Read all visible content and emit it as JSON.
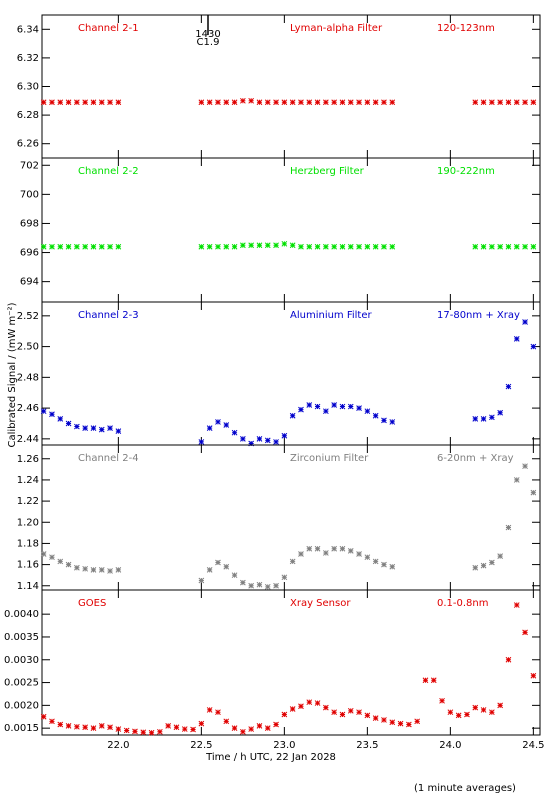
{
  "chart_data": [
    {
      "type": "scatter",
      "color": "#e00000",
      "annotations": [
        "Channel 2-1",
        "Lyman-alpha Filter",
        "120-123nm"
      ],
      "marker_event": {
        "x": 22.54,
        "texts": [
          "1430",
          "C1.9"
        ]
      },
      "x": [
        21.55,
        21.6,
        21.65,
        21.7,
        21.75,
        21.8,
        21.85,
        21.9,
        21.95,
        22.0,
        22.05,
        22.1,
        22.15,
        22.2,
        22.25,
        22.3,
        22.35,
        22.4,
        22.45,
        22.5,
        22.55,
        22.6,
        22.65,
        22.7,
        22.75,
        22.8,
        22.85,
        22.9,
        22.95,
        23.0,
        23.05,
        23.1,
        23.15,
        23.2,
        23.25,
        23.3,
        23.35,
        23.4,
        23.45,
        23.5,
        23.55,
        23.6,
        23.65,
        23.7,
        23.75,
        23.8,
        23.85,
        23.9,
        23.95,
        24.0,
        24.05,
        24.1,
        24.15,
        24.2,
        24.25,
        24.3,
        24.35,
        24.4,
        24.45,
        24.5
      ],
      "values": [
        6.289,
        6.289,
        6.289,
        6.289,
        6.289,
        6.289,
        6.289,
        6.289,
        6.289,
        6.289,
        null,
        null,
        null,
        null,
        null,
        null,
        null,
        null,
        null,
        6.289,
        6.289,
        6.289,
        6.289,
        6.289,
        6.29,
        6.29,
        6.289,
        6.289,
        6.289,
        6.289,
        6.289,
        6.289,
        6.289,
        6.289,
        6.289,
        6.289,
        6.289,
        6.289,
        6.289,
        6.289,
        6.289,
        6.289,
        6.289,
        null,
        null,
        null,
        null,
        null,
        null,
        null,
        null,
        null,
        6.289,
        6.289,
        6.289,
        6.289,
        6.289,
        6.289,
        6.289,
        6.289
      ],
      "xlim": [
        21.54,
        24.54
      ],
      "ylim": [
        6.25,
        6.35
      ],
      "yticks": [
        6.26,
        6.28,
        {
          "value": 6.3,
          "label": "6.30"
        },
        6.32,
        6.34
      ]
    },
    {
      "type": "scatter",
      "color": "#00e000",
      "annotations": [
        "Channel 2-2",
        "Herzberg Filter",
        "190-222nm"
      ],
      "x": [
        21.55,
        21.6,
        21.65,
        21.7,
        21.75,
        21.8,
        21.85,
        21.9,
        21.95,
        22.0,
        22.05,
        22.1,
        22.15,
        22.2,
        22.25,
        22.3,
        22.35,
        22.4,
        22.45,
        22.5,
        22.55,
        22.6,
        22.65,
        22.7,
        22.75,
        22.8,
        22.85,
        22.9,
        22.95,
        23.0,
        23.05,
        23.1,
        23.15,
        23.2,
        23.25,
        23.3,
        23.35,
        23.4,
        23.45,
        23.5,
        23.55,
        23.6,
        23.65,
        23.7,
        23.75,
        23.8,
        23.85,
        23.9,
        23.95,
        24.0,
        24.05,
        24.1,
        24.15,
        24.2,
        24.25,
        24.3,
        24.35,
        24.4,
        24.45,
        24.5
      ],
      "values": [
        696.4,
        696.4,
        696.4,
        696.4,
        696.4,
        696.4,
        696.4,
        696.4,
        696.4,
        696.4,
        null,
        null,
        null,
        null,
        null,
        null,
        null,
        null,
        null,
        696.4,
        696.4,
        696.4,
        696.4,
        696.4,
        696.5,
        696.5,
        696.5,
        696.5,
        696.5,
        696.6,
        696.5,
        696.4,
        696.4,
        696.4,
        696.4,
        696.4,
        696.4,
        696.4,
        696.4,
        696.4,
        696.4,
        696.4,
        696.4,
        null,
        null,
        null,
        null,
        null,
        null,
        null,
        null,
        null,
        696.4,
        696.4,
        696.4,
        696.4,
        696.4,
        696.4,
        696.4,
        696.4
      ],
      "xlim": [
        21.54,
        24.54
      ],
      "ylim": [
        692.6,
        702.5
      ],
      "yticks": [
        694,
        696,
        698,
        700,
        702
      ]
    },
    {
      "type": "scatter",
      "color": "#0000cc",
      "annotations": [
        "Channel 2-3",
        "Aluminium Filter",
        "17-80nm + Xray"
      ],
      "x": [
        21.55,
        21.6,
        21.65,
        21.7,
        21.75,
        21.8,
        21.85,
        21.9,
        21.95,
        22.0,
        22.05,
        22.1,
        22.15,
        22.2,
        22.25,
        22.3,
        22.35,
        22.4,
        22.45,
        22.5,
        22.55,
        22.6,
        22.65,
        22.7,
        22.75,
        22.8,
        22.85,
        22.9,
        22.95,
        23.0,
        23.05,
        23.1,
        23.15,
        23.2,
        23.25,
        23.3,
        23.35,
        23.4,
        23.45,
        23.5,
        23.55,
        23.6,
        23.65,
        23.7,
        23.75,
        23.8,
        23.85,
        23.9,
        23.95,
        24.0,
        24.05,
        24.1,
        24.15,
        24.2,
        24.25,
        24.3,
        24.35,
        24.4,
        24.45,
        24.5
      ],
      "values": [
        2.458,
        2.456,
        2.453,
        2.45,
        2.448,
        2.447,
        2.447,
        2.446,
        2.447,
        2.445,
        null,
        null,
        null,
        null,
        null,
        null,
        null,
        null,
        null,
        2.438,
        2.447,
        2.451,
        2.449,
        2.444,
        2.44,
        2.437,
        2.44,
        2.439,
        2.438,
        2.442,
        2.455,
        2.459,
        2.462,
        2.461,
        2.458,
        2.462,
        2.461,
        2.461,
        2.46,
        2.458,
        2.455,
        2.452,
        2.451,
        null,
        null,
        null,
        null,
        null,
        null,
        null,
        null,
        null,
        2.453,
        2.453,
        2.454,
        2.457,
        2.474,
        2.505,
        2.516,
        2.5
      ],
      "xlim": [
        21.54,
        24.54
      ],
      "ylim": [
        2.436,
        2.529
      ],
      "yticks": [
        2.44,
        2.46,
        2.48,
        {
          "value": 2.5,
          "label": "2.50"
        },
        2.52
      ]
    },
    {
      "type": "scatter",
      "color": "#808080",
      "annotations": [
        "Channel 2-4",
        "Zirconium Filter",
        "6-20nm + Xray"
      ],
      "x": [
        21.55,
        21.6,
        21.65,
        21.7,
        21.75,
        21.8,
        21.85,
        21.9,
        21.95,
        22.0,
        22.05,
        22.1,
        22.15,
        22.2,
        22.25,
        22.3,
        22.35,
        22.4,
        22.45,
        22.5,
        22.55,
        22.6,
        22.65,
        22.7,
        22.75,
        22.8,
        22.85,
        22.9,
        22.95,
        23.0,
        23.05,
        23.1,
        23.15,
        23.2,
        23.25,
        23.3,
        23.35,
        23.4,
        23.45,
        23.5,
        23.55,
        23.6,
        23.65,
        23.7,
        23.75,
        23.8,
        23.85,
        23.9,
        23.95,
        24.0,
        24.05,
        24.1,
        24.15,
        24.2,
        24.25,
        24.3,
        24.35,
        24.4,
        24.45,
        24.5
      ],
      "values": [
        1.17,
        1.167,
        1.163,
        1.16,
        1.157,
        1.156,
        1.155,
        1.155,
        1.154,
        1.155,
        null,
        null,
        null,
        null,
        null,
        null,
        null,
        null,
        null,
        1.145,
        1.155,
        1.162,
        1.158,
        1.15,
        1.143,
        1.14,
        1.141,
        1.139,
        1.14,
        1.148,
        1.163,
        1.17,
        1.175,
        1.175,
        1.171,
        1.175,
        1.175,
        1.173,
        1.17,
        1.167,
        1.163,
        1.16,
        1.158,
        null,
        null,
        null,
        null,
        null,
        null,
        null,
        null,
        null,
        1.157,
        1.159,
        1.162,
        1.168,
        1.195,
        1.24,
        1.253,
        1.228
      ],
      "xlim": [
        21.54,
        24.54
      ],
      "ylim": [
        1.136,
        1.273
      ],
      "yticks": [
        1.14,
        1.16,
        1.18,
        {
          "value": 1.2,
          "label": "1.20"
        },
        1.22,
        1.24,
        1.26
      ]
    },
    {
      "type": "scatter",
      "color": "#e00000",
      "annotations": [
        "GOES",
        "Xray Sensor",
        "0.1-0.8nm"
      ],
      "x": [
        21.55,
        21.6,
        21.65,
        21.7,
        21.75,
        21.8,
        21.85,
        21.9,
        21.95,
        22.0,
        22.05,
        22.1,
        22.15,
        22.2,
        22.25,
        22.3,
        22.35,
        22.4,
        22.45,
        22.5,
        22.55,
        22.6,
        22.65,
        22.7,
        22.75,
        22.8,
        22.85,
        22.9,
        22.95,
        23.0,
        23.05,
        23.1,
        23.15,
        23.2,
        23.25,
        23.3,
        23.35,
        23.4,
        23.45,
        23.5,
        23.55,
        23.6,
        23.65,
        23.7,
        23.75,
        23.8,
        23.85,
        23.9,
        23.95,
        24.0,
        24.05,
        24.1,
        24.15,
        24.2,
        24.25,
        24.3,
        24.35,
        24.4,
        24.45,
        24.5
      ],
      "values": [
        0.00175,
        0.00165,
        0.00158,
        0.00155,
        0.00153,
        0.00152,
        0.0015,
        0.00155,
        0.00152,
        0.00148,
        0.00145,
        0.00143,
        0.00141,
        0.0014,
        0.00142,
        0.00155,
        0.00152,
        0.00148,
        0.00147,
        0.0016,
        0.0019,
        0.00185,
        0.00165,
        0.0015,
        0.00142,
        0.00148,
        0.00155,
        0.0015,
        0.00158,
        0.0018,
        0.00192,
        0.00198,
        0.00207,
        0.00205,
        0.00195,
        0.00185,
        0.0018,
        0.00188,
        0.00185,
        0.00178,
        0.00172,
        0.00168,
        0.00163,
        0.0016,
        0.00158,
        0.00165,
        0.00255,
        0.00255,
        0.0021,
        0.00185,
        0.00178,
        0.0018,
        0.00195,
        0.0019,
        0.00185,
        0.002,
        0.003,
        0.0042,
        0.0036,
        0.00265
      ],
      "xlim": [
        21.54,
        24.54
      ],
      "ylim": [
        0.00135,
        0.00453
      ],
      "yticks": [
        0.0015,
        {
          "value": 0.002,
          "label": "0.0020"
        },
        0.0025,
        {
          "value": 0.003,
          "label": "0.0030"
        },
        0.0035,
        {
          "value": 0.004,
          "label": "0.0040"
        }
      ],
      "xticks": [
        {
          "value": 22,
          "label": "22.0"
        },
        22.5,
        {
          "value": 23,
          "label": "23.0"
        },
        23.5,
        {
          "value": 24,
          "label": "24.0"
        },
        24.5
      ],
      "xlabel": "Time / h UTC, 22 Jan 2028"
    }
  ],
  "ylabel": "Calibrated Signal / (mW m⁻²)",
  "footnote": "(1 minute averages)"
}
